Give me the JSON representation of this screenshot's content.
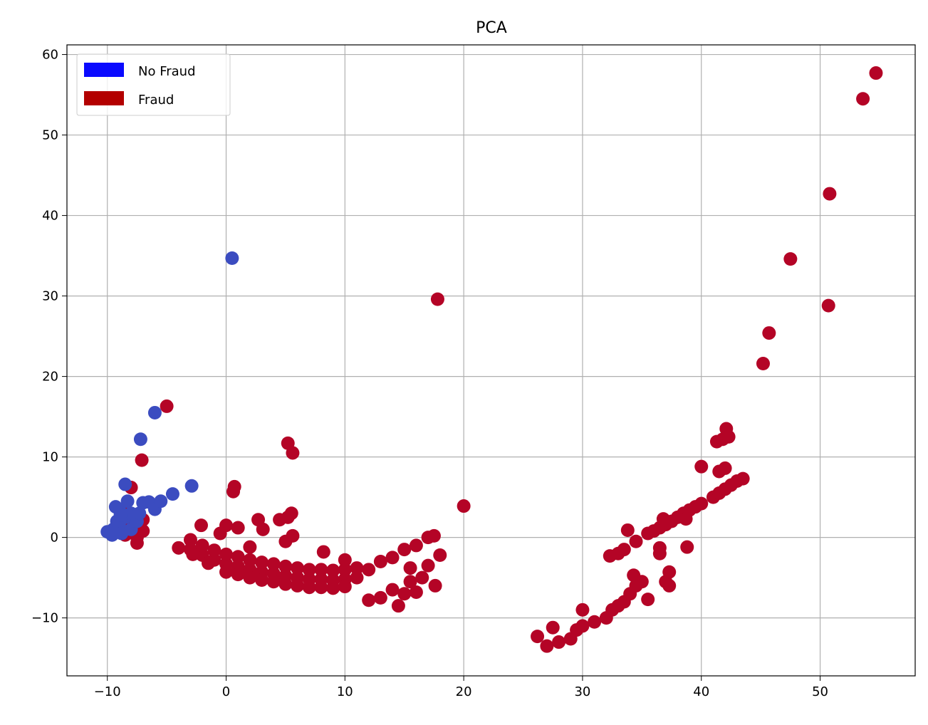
{
  "chart_data": {
    "type": "scatter",
    "title": "PCA",
    "xlabel": "",
    "ylabel": "",
    "xlim": [
      -13.4,
      58.0
    ],
    "ylim": [
      -17.2,
      61.2
    ],
    "grid": true,
    "legend_placement": "top-left",
    "x_ticks": [
      -10,
      0,
      10,
      20,
      30,
      40,
      50
    ],
    "x_tick_labels": [
      "−10",
      "0",
      "10",
      "20",
      "30",
      "40",
      "50"
    ],
    "y_ticks": [
      -10,
      0,
      10,
      20,
      30,
      40,
      50,
      60
    ],
    "y_tick_labels": [
      "−10",
      "0",
      "10",
      "20",
      "30",
      "40",
      "50",
      "60"
    ],
    "legend": [
      {
        "label": "No Fraud",
        "color": "#0a0aff"
      },
      {
        "label": "Fraud",
        "color": "#b30000"
      }
    ],
    "series": [
      {
        "name": "No Fraud",
        "color": "#3b4cc0",
        "points": [
          [
            -10,
            0.7
          ],
          [
            -9.6,
            0.3
          ],
          [
            -9.5,
            1
          ],
          [
            -9.2,
            2
          ],
          [
            -9,
            3.5
          ],
          [
            -9,
            1.5
          ],
          [
            -8.8,
            0.5
          ],
          [
            -8.5,
            2.5
          ],
          [
            -8.5,
            6.6
          ],
          [
            -8.3,
            4.5
          ],
          [
            -8,
            3
          ],
          [
            -8,
            1
          ],
          [
            -7.8,
            2.5
          ],
          [
            -7.5,
            2
          ],
          [
            -7.3,
            3
          ],
          [
            -7,
            4.3
          ],
          [
            -6.5,
            4.4
          ],
          [
            -6,
            3.5
          ],
          [
            -5.5,
            4.5
          ],
          [
            -4.5,
            5.4
          ],
          [
            -6,
            15.5
          ],
          [
            -7.2,
            12.2
          ],
          [
            -2.9,
            6.4
          ],
          [
            0.5,
            34.7
          ],
          [
            -9.3,
            3.8
          ],
          [
            -8.9,
            2.8
          ]
        ]
      },
      {
        "name": "Fraud",
        "color": "#b40426",
        "points": [
          [
            54.7,
            57.7
          ],
          [
            53.6,
            54.5
          ],
          [
            50.8,
            42.7
          ],
          [
            47.5,
            34.6
          ],
          [
            50.7,
            28.8
          ],
          [
            45.7,
            25.4
          ],
          [
            45.2,
            21.6
          ],
          [
            17.8,
            29.6
          ],
          [
            20,
            3.9
          ],
          [
            -5,
            16.3
          ],
          [
            -7.1,
            9.6
          ],
          [
            -8,
            6.2
          ],
          [
            5.2,
            11.7
          ],
          [
            5.6,
            10.5
          ],
          [
            0.7,
            6.3
          ],
          [
            0.6,
            5.7
          ],
          [
            -8.5,
            3.5
          ],
          [
            -8,
            1.5
          ],
          [
            -7.5,
            0
          ],
          [
            -7,
            2.2
          ],
          [
            -7.5,
            -0.7
          ],
          [
            -8.5,
            0.3
          ],
          [
            -7,
            0.8
          ],
          [
            -4,
            -1.3
          ],
          [
            -3,
            -1.5
          ],
          [
            -2,
            -2.2
          ],
          [
            -1,
            -2.8
          ],
          [
            0,
            -3.3
          ],
          [
            1,
            -3.6
          ],
          [
            2,
            -4
          ],
          [
            3,
            -4.3
          ],
          [
            4,
            -4.5
          ],
          [
            5,
            -4.8
          ],
          [
            6,
            -5
          ],
          [
            7,
            -5.2
          ],
          [
            8,
            -5.2
          ],
          [
            9,
            -5.3
          ],
          [
            10,
            -5.2
          ],
          [
            11,
            -5
          ],
          [
            -3,
            -0.3
          ],
          [
            -2,
            -1
          ],
          [
            -1,
            -1.6
          ],
          [
            0,
            -2.1
          ],
          [
            1,
            -2.4
          ],
          [
            2,
            -2.8
          ],
          [
            3,
            -3.1
          ],
          [
            4,
            -3.3
          ],
          [
            5,
            -3.6
          ],
          [
            6,
            -3.8
          ],
          [
            7,
            -4
          ],
          [
            8,
            -4
          ],
          [
            9,
            -4.1
          ],
          [
            10,
            -4
          ],
          [
            11,
            -3.8
          ],
          [
            -2.8,
            -2.1
          ],
          [
            -1.5,
            -3.2
          ],
          [
            0,
            -4.3
          ],
          [
            1,
            -4.6
          ],
          [
            2,
            -5
          ],
          [
            3,
            -5.3
          ],
          [
            4,
            -5.5
          ],
          [
            5,
            -5.8
          ],
          [
            6,
            -6
          ],
          [
            7,
            -6.2
          ],
          [
            8,
            -6.2
          ],
          [
            9,
            -6.3
          ],
          [
            10,
            -6.1
          ],
          [
            12,
            -7.8
          ],
          [
            13,
            -7.5
          ],
          [
            14,
            -6.5
          ],
          [
            14.5,
            -8.5
          ],
          [
            15,
            -7
          ],
          [
            15.5,
            -5.5
          ],
          [
            16,
            -6.8
          ],
          [
            12,
            -4
          ],
          [
            13,
            -3
          ],
          [
            14,
            -2.5
          ],
          [
            15,
            -1.5
          ],
          [
            16,
            -1
          ],
          [
            17,
            0
          ],
          [
            17.5,
            0.2
          ],
          [
            17,
            -3.5
          ],
          [
            18,
            -2.2
          ],
          [
            17.6,
            -6
          ],
          [
            15.5,
            -3.8
          ],
          [
            16.5,
            -5
          ],
          [
            0,
            1.5
          ],
          [
            -0.5,
            0.5
          ],
          [
            1,
            1.2
          ],
          [
            2.7,
            2.2
          ],
          [
            3.1,
            1
          ],
          [
            4.5,
            2.2
          ],
          [
            5.2,
            2.5
          ],
          [
            5.5,
            3
          ],
          [
            5.6,
            0.2
          ],
          [
            5,
            -0.5
          ],
          [
            8.2,
            -1.8
          ],
          [
            10,
            -2.8
          ],
          [
            2,
            -1.2
          ],
          [
            -2.1,
            1.5
          ],
          [
            26.2,
            -12.3
          ],
          [
            27,
            -13.5
          ],
          [
            27.5,
            -11.2
          ],
          [
            28,
            -13
          ],
          [
            29,
            -12.6
          ],
          [
            29.5,
            -11.5
          ],
          [
            30,
            -9
          ],
          [
            30,
            -11
          ],
          [
            31,
            -10.5
          ],
          [
            32,
            -10
          ],
          [
            32.5,
            -9
          ],
          [
            33,
            -8.5
          ],
          [
            33.5,
            -8
          ],
          [
            34,
            -7
          ],
          [
            34.5,
            -6
          ],
          [
            35,
            -5.5
          ],
          [
            35.5,
            -7.7
          ],
          [
            34.3,
            -4.7
          ],
          [
            33.8,
            0.9
          ],
          [
            32.3,
            -2.3
          ],
          [
            33,
            -2
          ],
          [
            33.5,
            -1.5
          ],
          [
            34.5,
            -0.5
          ],
          [
            35.5,
            0.5
          ],
          [
            36,
            0.8
          ],
          [
            36.5,
            1.2
          ],
          [
            37,
            1.6
          ],
          [
            37.5,
            2
          ],
          [
            38,
            2.5
          ],
          [
            38.5,
            3
          ],
          [
            39,
            3.4
          ],
          [
            39.5,
            3.8
          ],
          [
            40,
            4.2
          ],
          [
            41,
            5
          ],
          [
            41.5,
            5.5
          ],
          [
            42,
            6
          ],
          [
            42.5,
            6.5
          ],
          [
            43,
            7
          ],
          [
            43.5,
            7.3
          ],
          [
            36.5,
            -1.3
          ],
          [
            36.5,
            -2
          ],
          [
            37,
            -5.5
          ],
          [
            37.3,
            -4.3
          ],
          [
            37.3,
            -6
          ],
          [
            38.8,
            -1.2
          ],
          [
            38.7,
            2.3
          ],
          [
            36.8,
            2.3
          ],
          [
            41.3,
            11.9
          ],
          [
            41.8,
            12.2
          ],
          [
            42.1,
            13.5
          ],
          [
            42.3,
            12.5
          ],
          [
            41.5,
            8.2
          ],
          [
            42,
            8.6
          ],
          [
            40,
            8.8
          ]
        ]
      }
    ]
  }
}
